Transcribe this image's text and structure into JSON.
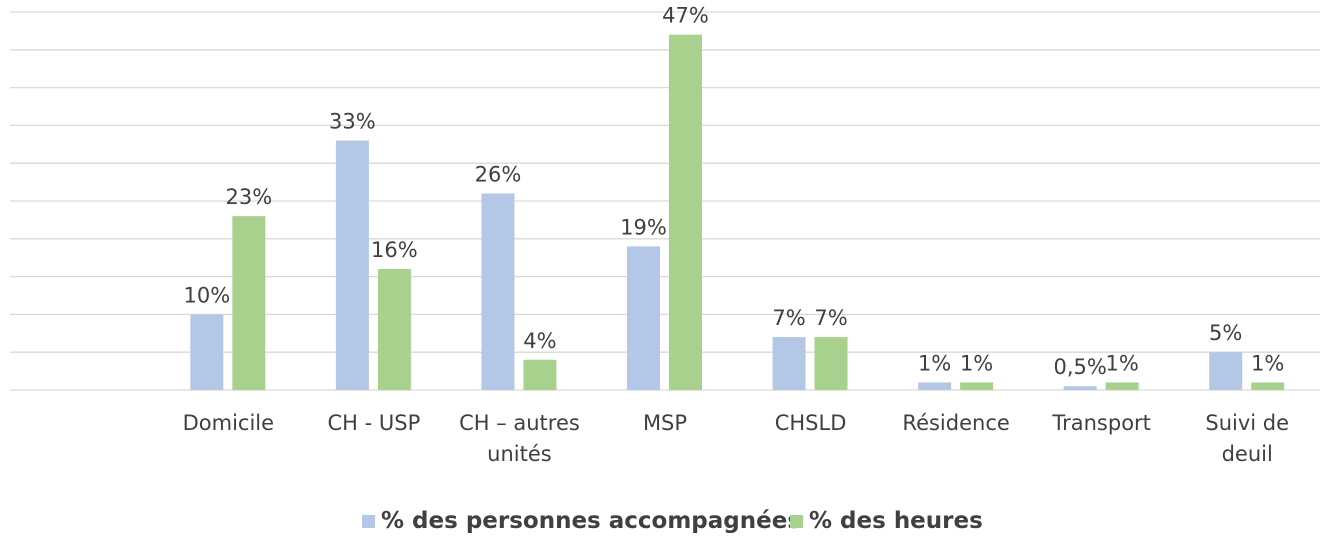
{
  "chart_data": {
    "type": "bar",
    "categories": [
      null,
      "Domicile",
      "CH - USP",
      "CH – autres unités",
      "MSP",
      "CHSLD",
      "Résidence",
      "Transport",
      "Suivi de deuil"
    ],
    "series": [
      {
        "name": "% des personnes accompagnées",
        "color": "#b4c7e7",
        "values": [
          null,
          10,
          33,
          26,
          19,
          7,
          1,
          0.5,
          5
        ],
        "value_labels": [
          null,
          "10%",
          "33%",
          "26%",
          "19%",
          "7%",
          "1%",
          "0,5%",
          "5%"
        ]
      },
      {
        "name": "% des heures",
        "color": "#a9d18e",
        "values": [
          null,
          23,
          16,
          4,
          47,
          7,
          1,
          1,
          1
        ],
        "value_labels": [
          null,
          "23%",
          "16%",
          "4%",
          "47%",
          "7%",
          "1%",
          "1%",
          "1%"
        ]
      }
    ],
    "ylim": [
      0,
      50
    ],
    "yticks": [
      0,
      5,
      10,
      15,
      20,
      25,
      30,
      35,
      40,
      45,
      50
    ],
    "grid": true,
    "legend": "bottom"
  }
}
